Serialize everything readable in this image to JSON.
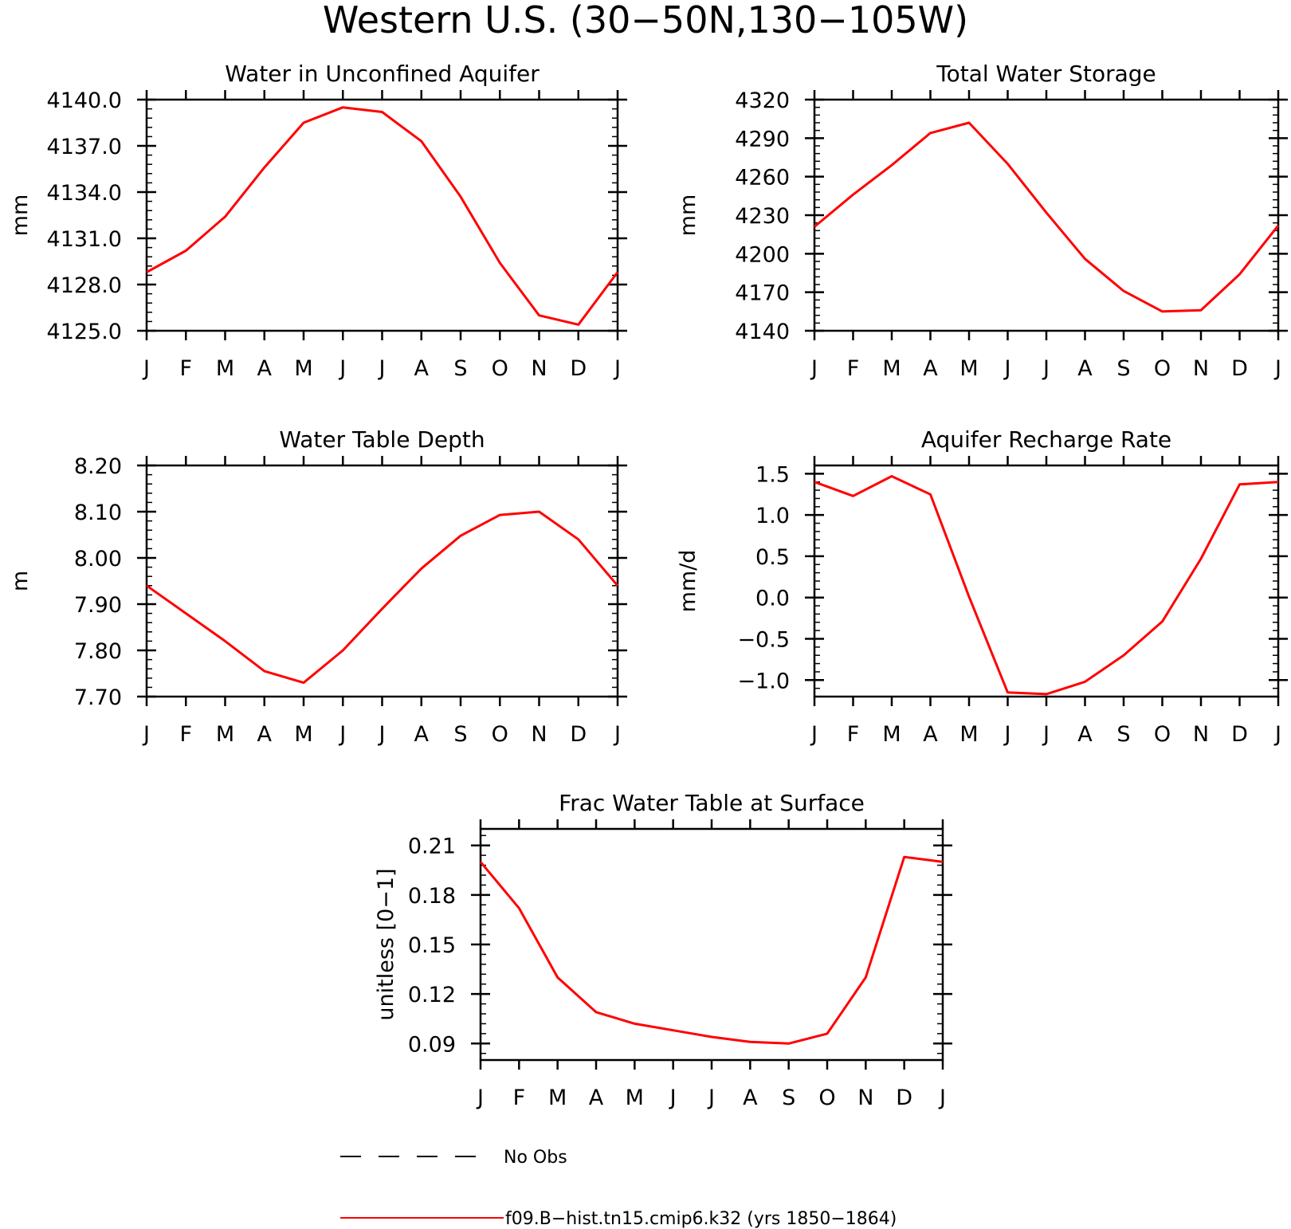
{
  "title": "Western U.S. (30−50N,130−105W)",
  "colors": {
    "model": "#ff0000",
    "obs": "#000000"
  },
  "legend": {
    "obs_label": "No Obs",
    "model_label": "f09.B−hist.tn15.cmip6.k32 (yrs 1850−1864)"
  },
  "chart_data": [
    {
      "type": "line",
      "title": "Water in Unconfined Aquifer",
      "ylabel": "mm",
      "categories": [
        "J",
        "F",
        "M",
        "A",
        "M",
        "J",
        "J",
        "A",
        "S",
        "O",
        "N",
        "D",
        "J"
      ],
      "ylim": [
        4125.0,
        4140.0
      ],
      "yticks": [
        4125.0,
        4128.0,
        4131.0,
        4134.0,
        4137.0,
        4140.0
      ],
      "ytick_labels": [
        "4125.0",
        "4128.0",
        "4131.0",
        "4134.0",
        "4137.0",
        "4140.0"
      ],
      "yminor": 0.6,
      "series": [
        {
          "values": [
            4128.8,
            4130.2,
            4132.4,
            4135.6,
            4138.5,
            4139.5,
            4139.2,
            4137.3,
            4133.7,
            4129.4,
            4126.0,
            4125.4,
            4128.8
          ]
        }
      ]
    },
    {
      "type": "line",
      "title": "Total Water Storage",
      "ylabel": "mm",
      "categories": [
        "J",
        "F",
        "M",
        "A",
        "M",
        "J",
        "J",
        "A",
        "S",
        "O",
        "N",
        "D",
        "J"
      ],
      "ylim": [
        4140,
        4320
      ],
      "yticks": [
        4140,
        4170,
        4200,
        4230,
        4260,
        4290,
        4320
      ],
      "ytick_labels": [
        "4140",
        "4170",
        "4200",
        "4230",
        "4260",
        "4290",
        "4320"
      ],
      "yminor": 6,
      "series": [
        {
          "values": [
            4221,
            4246,
            4269,
            4294,
            4302,
            4270,
            4232,
            4196,
            4171,
            4155,
            4156,
            4184,
            4222
          ]
        }
      ]
    },
    {
      "type": "line",
      "title": "Water Table Depth",
      "ylabel": "m",
      "categories": [
        "J",
        "F",
        "M",
        "A",
        "M",
        "J",
        "J",
        "A",
        "S",
        "O",
        "N",
        "D",
        "J"
      ],
      "ylim": [
        7.7,
        8.2
      ],
      "yticks": [
        7.7,
        7.8,
        7.9,
        8.0,
        8.1,
        8.2
      ],
      "ytick_labels": [
        "7.70",
        "7.80",
        "7.90",
        "8.00",
        "8.10",
        "8.20"
      ],
      "yminor": 0.02,
      "series": [
        {
          "values": [
            7.94,
            7.88,
            7.82,
            7.755,
            7.73,
            7.8,
            7.89,
            7.977,
            8.048,
            8.093,
            8.1,
            8.04,
            7.94
          ]
        }
      ]
    },
    {
      "type": "line",
      "title": "Aquifer Recharge Rate",
      "ylabel": "mm/d",
      "categories": [
        "J",
        "F",
        "M",
        "A",
        "M",
        "J",
        "J",
        "A",
        "S",
        "O",
        "N",
        "D",
        "J"
      ],
      "ylim": [
        -1.2,
        1.6
      ],
      "yticks": [
        -1.0,
        -0.5,
        0.0,
        0.5,
        1.0,
        1.5
      ],
      "ytick_labels": [
        "−1.0",
        "−0.5",
        "0.0",
        "0.5",
        "1.0",
        "1.5"
      ],
      "yminor": 0.1,
      "series": [
        {
          "values": [
            1.4,
            1.23,
            1.47,
            1.25,
            0.01,
            -1.15,
            -1.17,
            -1.02,
            -0.7,
            -0.29,
            0.47,
            1.37,
            1.4
          ]
        }
      ]
    },
    {
      "type": "line",
      "title": "Frac Water Table at Surface",
      "ylabel": "unitless [0−1]",
      "categories": [
        "J",
        "F",
        "M",
        "A",
        "M",
        "J",
        "J",
        "A",
        "S",
        "O",
        "N",
        "D",
        "J"
      ],
      "ylim": [
        0.08,
        0.22
      ],
      "yticks": [
        0.09,
        0.12,
        0.15,
        0.18,
        0.21
      ],
      "ytick_labels": [
        "0.09",
        "0.12",
        "0.15",
        "0.18",
        "0.21"
      ],
      "yminor": 0.006,
      "series": [
        {
          "values": [
            0.2,
            0.172,
            0.13,
            0.109,
            0.102,
            0.098,
            0.094,
            0.091,
            0.09,
            0.096,
            0.13,
            0.203,
            0.2
          ]
        }
      ]
    }
  ]
}
